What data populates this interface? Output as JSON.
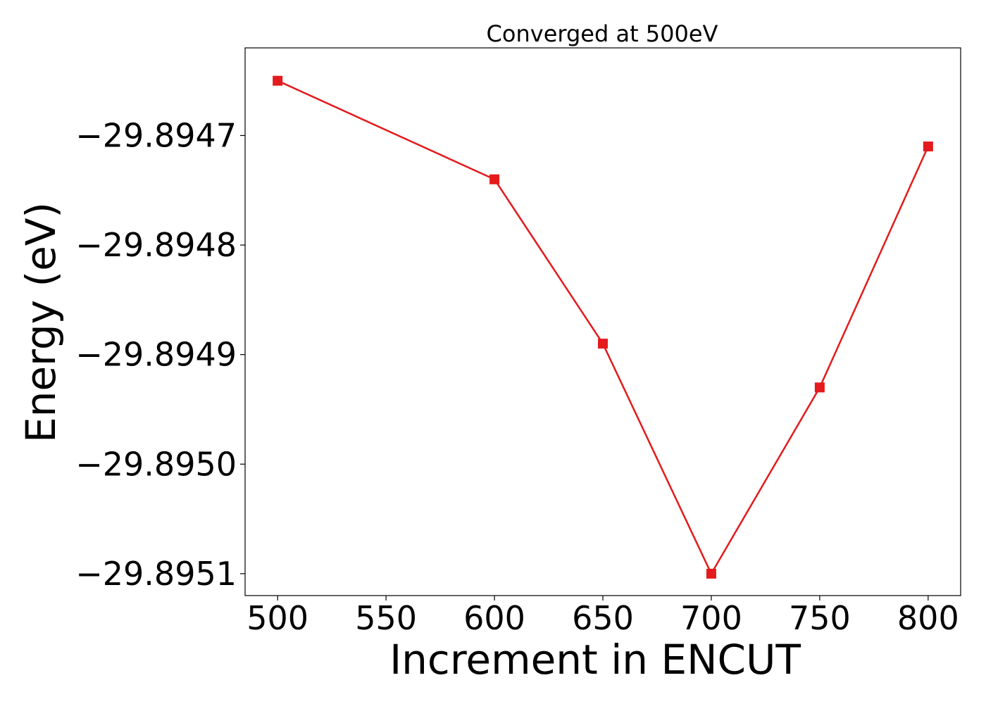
{
  "chart_data": {
    "type": "line",
    "title": "Converged at 500eV",
    "xlabel": "Increment in ENCUT",
    "ylabel": "Energy (eV)",
    "x": [
      500,
      600,
      650,
      700,
      750,
      800
    ],
    "series": [
      {
        "values": [
          -29.89465,
          -29.89474,
          -29.89489,
          -29.8951,
          -29.89493,
          -29.89471
        ],
        "color": "#e41a1c",
        "marker": "square"
      }
    ],
    "xlim": [
      485,
      815
    ],
    "ylim": [
      -29.89512,
      -29.89462
    ],
    "xticks": [
      500,
      550,
      600,
      650,
      700,
      750,
      800
    ],
    "xtick_labels": [
      "500",
      "550",
      "600",
      "650",
      "700",
      "750",
      "800"
    ],
    "yticks": [
      -29.8947,
      -29.8948,
      -29.8949,
      -29.895,
      -29.8951
    ],
    "ytick_labels": [
      "−29.8947",
      "−29.8948",
      "−29.8949",
      "−29.8950",
      "−29.8951"
    ],
    "grid": false,
    "legend": false
  }
}
